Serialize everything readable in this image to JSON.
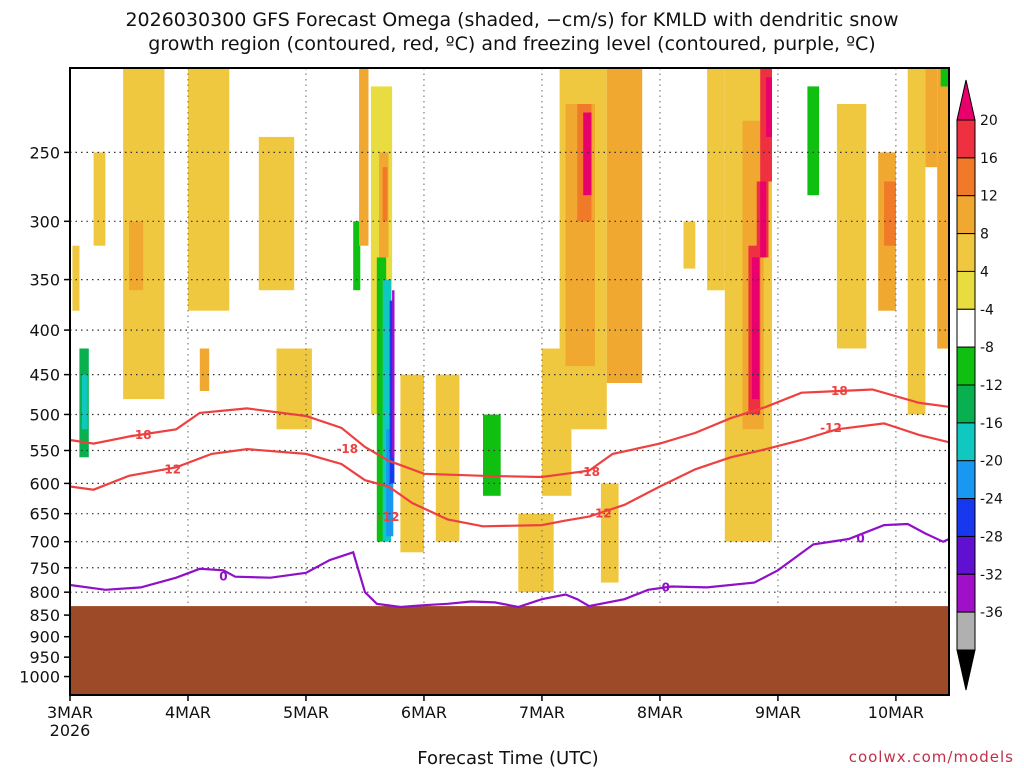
{
  "chart_data": {
    "type": "heatmap",
    "title": {
      "line1": "2026030300 GFS Forecast Omega (shaded, −cm/s) for KMLD with dendritic snow",
      "line2": "growth region (contoured, red, ºC) and freezing level (contoured, purple, ºC)"
    },
    "xlabel": "Forecast Time (UTC)",
    "credit": "coolwx.com/models",
    "x_ticks": [
      "3MAR",
      "4MAR",
      "5MAR",
      "6MAR",
      "7MAR",
      "8MAR",
      "9MAR",
      "10MAR"
    ],
    "x_tick_year": "2026",
    "x_range_days": [
      0,
      7.45
    ],
    "y_ticks": [
      250,
      300,
      350,
      400,
      450,
      500,
      550,
      600,
      650,
      700,
      750,
      800,
      850,
      900,
      950,
      1000
    ],
    "y_range_hpa": [
      200,
      1050
    ],
    "y_scale": "log-pressure",
    "grid": true,
    "ground_level_hpa": 830,
    "colorbar": {
      "labels": [
        20,
        16,
        12,
        8,
        4,
        -4,
        -8,
        -12,
        -16,
        -20,
        -24,
        -28,
        -32,
        -36
      ],
      "colors": [
        "#e8006c",
        "#ee3040",
        "#f07a28",
        "#f0a830",
        "#f0c840",
        "#e8dc40",
        "#ffffff",
        "#10c010",
        "#08b050",
        "#10c8c0",
        "#1898f0",
        "#1838f0",
        "#6010d0",
        "#a010c8",
        "#b0b0b0",
        "#000000"
      ]
    },
    "series": [
      {
        "name": "-18",
        "color": "#ee4040",
        "points": [
          [
            0,
            535
          ],
          [
            0.2,
            540
          ],
          [
            0.5,
            530
          ],
          [
            0.9,
            520
          ],
          [
            1.1,
            498
          ],
          [
            1.5,
            492
          ],
          [
            2.0,
            502
          ],
          [
            2.3,
            518
          ],
          [
            2.5,
            545
          ],
          [
            2.7,
            565
          ],
          [
            3.0,
            585
          ],
          [
            3.5,
            588
          ],
          [
            4.0,
            590
          ],
          [
            4.2,
            585
          ],
          [
            4.4,
            580
          ],
          [
            4.6,
            555
          ],
          [
            5.0,
            540
          ],
          [
            5.3,
            525
          ],
          [
            5.6,
            505
          ],
          [
            5.9,
            490
          ],
          [
            6.2,
            472
          ],
          [
            6.5,
            470
          ],
          [
            6.8,
            468
          ],
          [
            7.2,
            485
          ],
          [
            7.45,
            490
          ]
        ]
      },
      {
        "name": "-12",
        "color": "#ee4040",
        "points": [
          [
            0,
            605
          ],
          [
            0.2,
            610
          ],
          [
            0.5,
            588
          ],
          [
            0.9,
            575
          ],
          [
            1.2,
            555
          ],
          [
            1.5,
            548
          ],
          [
            2.0,
            555
          ],
          [
            2.3,
            570
          ],
          [
            2.5,
            595
          ],
          [
            2.7,
            605
          ],
          [
            2.9,
            632
          ],
          [
            3.2,
            660
          ],
          [
            3.5,
            672
          ],
          [
            4.0,
            670
          ],
          [
            4.2,
            662
          ],
          [
            4.4,
            655
          ],
          [
            4.7,
            635
          ],
          [
            5.0,
            605
          ],
          [
            5.3,
            578
          ],
          [
            5.6,
            560
          ],
          [
            5.9,
            548
          ],
          [
            6.2,
            535
          ],
          [
            6.5,
            520
          ],
          [
            6.9,
            512
          ],
          [
            7.2,
            528
          ],
          [
            7.45,
            538
          ]
        ]
      },
      {
        "name": "0",
        "color": "#9010c8",
        "points": [
          [
            0,
            785
          ],
          [
            0.3,
            795
          ],
          [
            0.6,
            790
          ],
          [
            0.9,
            770
          ],
          [
            1.1,
            752
          ],
          [
            1.3,
            755
          ],
          [
            1.4,
            768
          ],
          [
            1.7,
            770
          ],
          [
            2.0,
            760
          ],
          [
            2.2,
            735
          ],
          [
            2.4,
            720
          ],
          [
            2.5,
            800
          ],
          [
            2.6,
            825
          ],
          [
            2.8,
            832
          ],
          [
            3.0,
            828
          ],
          [
            3.2,
            825
          ],
          [
            3.4,
            820
          ],
          [
            3.6,
            822
          ],
          [
            3.8,
            832
          ],
          [
            4.0,
            815
          ],
          [
            4.2,
            805
          ],
          [
            4.3,
            815
          ],
          [
            4.4,
            830
          ],
          [
            4.7,
            815
          ],
          [
            4.9,
            795
          ],
          [
            5.1,
            788
          ],
          [
            5.4,
            790
          ],
          [
            5.8,
            780
          ],
          [
            6.0,
            755
          ],
          [
            6.3,
            705
          ],
          [
            6.6,
            695
          ],
          [
            6.9,
            670
          ],
          [
            7.1,
            668
          ],
          [
            7.25,
            685
          ],
          [
            7.4,
            700
          ],
          [
            7.45,
            695
          ]
        ]
      }
    ],
    "contour_labels": [
      {
        "text": "-18",
        "color": "#ee4040"
      },
      {
        "text": "-18",
        "color": "#ee4040"
      },
      {
        "text": "-18",
        "color": "#ee4040"
      },
      {
        "text": "-18",
        "color": "#ee4040"
      },
      {
        "text": "-12",
        "color": "#ee4040"
      },
      {
        "text": "-12",
        "color": "#ee4040"
      },
      {
        "text": "-12",
        "color": "#ee4040"
      },
      {
        "text": "-12",
        "color": "#ee4040"
      },
      {
        "text": "0",
        "color": "#9010c8"
      },
      {
        "text": "0",
        "color": "#9010c8"
      },
      {
        "text": "0",
        "color": "#9010c8"
      }
    ],
    "cells": [
      {
        "t": 0.02,
        "dt": 0.12,
        "p1": 380,
        "p2": 640,
        "v": -8
      },
      {
        "t": 0.08,
        "dt": 0.08,
        "p1": 420,
        "p2": 560,
        "v": -14
      },
      {
        "t": 0.1,
        "dt": 0.05,
        "p1": 450,
        "p2": 520,
        "v": -18
      },
      {
        "t": 0.02,
        "dt": 0.06,
        "p1": 320,
        "p2": 380,
        "v": 6
      },
      {
        "t": 0.2,
        "dt": 0.1,
        "p1": 250,
        "p2": 320,
        "v": 6
      },
      {
        "t": 0.45,
        "dt": 0.35,
        "p1": 180,
        "p2": 480,
        "v": 6
      },
      {
        "t": 0.5,
        "dt": 0.12,
        "p1": 300,
        "p2": 360,
        "v": 10
      },
      {
        "t": 1.0,
        "dt": 0.35,
        "p1": 200,
        "p2": 380,
        "v": 6
      },
      {
        "t": 1.1,
        "dt": 0.08,
        "p1": 420,
        "p2": 470,
        "v": 10
      },
      {
        "t": 1.3,
        "dt": 0.15,
        "p1": 700,
        "p2": 800,
        "v": -8
      },
      {
        "t": 1.6,
        "dt": 0.3,
        "p1": 240,
        "p2": 360,
        "v": 6
      },
      {
        "t": 1.75,
        "dt": 0.3,
        "p1": 420,
        "p2": 520,
        "v": 6
      },
      {
        "t": 2.1,
        "dt": 0.15,
        "p1": 180,
        "p2": 360,
        "v": -8
      },
      {
        "t": 2.05,
        "dt": 0.2,
        "p1": 740,
        "p2": 830,
        "v": -8
      },
      {
        "t": 2.3,
        "dt": 0.2,
        "p1": 180,
        "p2": 560,
        "v": -8
      },
      {
        "t": 2.4,
        "dt": 0.06,
        "p1": 300,
        "p2": 360,
        "v": -12
      },
      {
        "t": 2.5,
        "dt": 0.2,
        "p1": 200,
        "p2": 560,
        "v": -8
      },
      {
        "t": 2.38,
        "dt": 0.1,
        "p1": 540,
        "p2": 820,
        "v": -8
      },
      {
        "t": 2.45,
        "dt": 0.08,
        "p1": 200,
        "p2": 320,
        "v": 8
      },
      {
        "t": 2.55,
        "dt": 0.18,
        "p1": 210,
        "p2": 500,
        "v": 0
      },
      {
        "t": 2.6,
        "dt": 0.08,
        "p1": 330,
        "p2": 700,
        "v": -12
      },
      {
        "t": 2.65,
        "dt": 0.07,
        "p1": 350,
        "p2": 700,
        "v": -18
      },
      {
        "t": 2.68,
        "dt": 0.06,
        "p1": 520,
        "p2": 690,
        "v": -22
      },
      {
        "t": 2.71,
        "dt": 0.04,
        "p1": 370,
        "p2": 600,
        "v": -26
      },
      {
        "t": 2.73,
        "dt": 0.02,
        "p1": 360,
        "p2": 560,
        "v": -36
      },
      {
        "t": 2.62,
        "dt": 0.08,
        "p1": 250,
        "p2": 330,
        "v": 10
      },
      {
        "t": 2.65,
        "dt": 0.04,
        "p1": 260,
        "p2": 300,
        "v": 14
      },
      {
        "t": 2.8,
        "dt": 0.2,
        "p1": 450,
        "p2": 720,
        "v": 6
      },
      {
        "t": 2.85,
        "dt": 0.15,
        "p1": 300,
        "p2": 440,
        "v": -8
      },
      {
        "t": 3.05,
        "dt": 0.1,
        "p1": 600,
        "p2": 800,
        "v": -8
      },
      {
        "t": 3.1,
        "dt": 0.2,
        "p1": 450,
        "p2": 700,
        "v": 6
      },
      {
        "t": 3.5,
        "dt": 0.15,
        "p1": 500,
        "p2": 620,
        "v": -10
      },
      {
        "t": 3.8,
        "dt": 0.3,
        "p1": 650,
        "p2": 800,
        "v": 6
      },
      {
        "t": 4.0,
        "dt": 0.25,
        "p1": 420,
        "p2": 620,
        "v": 6
      },
      {
        "t": 4.15,
        "dt": 0.4,
        "p1": 180,
        "p2": 520,
        "v": 6
      },
      {
        "t": 4.2,
        "dt": 0.25,
        "p1": 220,
        "p2": 440,
        "v": 10
      },
      {
        "t": 4.3,
        "dt": 0.12,
        "p1": 220,
        "p2": 300,
        "v": 14
      },
      {
        "t": 4.35,
        "dt": 0.07,
        "p1": 225,
        "p2": 280,
        "v": 20
      },
      {
        "t": 4.55,
        "dt": 0.3,
        "p1": 180,
        "p2": 460,
        "v": 10
      },
      {
        "t": 4.5,
        "dt": 0.15,
        "p1": 600,
        "p2": 780,
        "v": 6
      },
      {
        "t": 4.95,
        "dt": 0.15,
        "p1": 600,
        "p2": 680,
        "v": -8
      },
      {
        "t": 5.35,
        "dt": 0.08,
        "p1": 200,
        "p2": 260,
        "v": -8
      },
      {
        "t": 5.2,
        "dt": 0.1,
        "p1": 300,
        "p2": 340,
        "v": 6
      },
      {
        "t": 5.4,
        "dt": 0.15,
        "p1": 200,
        "p2": 360,
        "v": 6
      },
      {
        "t": 5.6,
        "dt": 0.12,
        "p1": 560,
        "p2": 720,
        "v": -8
      },
      {
        "t": 5.55,
        "dt": 0.4,
        "p1": 200,
        "p2": 700,
        "v": 6
      },
      {
        "t": 5.7,
        "dt": 0.18,
        "p1": 230,
        "p2": 520,
        "v": 10
      },
      {
        "t": 5.75,
        "dt": 0.1,
        "p1": 320,
        "p2": 500,
        "v": 18
      },
      {
        "t": 5.78,
        "dt": 0.06,
        "p1": 330,
        "p2": 480,
        "v": 22
      },
      {
        "t": 5.82,
        "dt": 0.1,
        "p1": 270,
        "p2": 330,
        "v": 18
      },
      {
        "t": 5.85,
        "dt": 0.05,
        "p1": 270,
        "p2": 330,
        "v": 22
      },
      {
        "t": 5.85,
        "dt": 0.1,
        "p1": 200,
        "p2": 270,
        "v": 16
      },
      {
        "t": 5.9,
        "dt": 0.05,
        "p1": 205,
        "p2": 240,
        "v": 22
      },
      {
        "t": 6.15,
        "dt": 0.15,
        "p1": 180,
        "p2": 340,
        "v": -8
      },
      {
        "t": 6.25,
        "dt": 0.1,
        "p1": 210,
        "p2": 280,
        "v": -12
      },
      {
        "t": 6.35,
        "dt": 0.2,
        "p1": 180,
        "p2": 380,
        "v": -8
      },
      {
        "t": 6.5,
        "dt": 0.25,
        "p1": 220,
        "p2": 420,
        "v": 6
      },
      {
        "t": 6.75,
        "dt": 0.2,
        "p1": 180,
        "p2": 420,
        "v": -8
      },
      {
        "t": 6.85,
        "dt": 0.15,
        "p1": 250,
        "p2": 380,
        "v": 10
      },
      {
        "t": 6.9,
        "dt": 0.1,
        "p1": 270,
        "p2": 320,
        "v": 14
      },
      {
        "t": 7.0,
        "dt": 0.15,
        "p1": 450,
        "p2": 620,
        "v": -8
      },
      {
        "t": 7.1,
        "dt": 0.15,
        "p1": 200,
        "p2": 500,
        "v": 6
      },
      {
        "t": 7.25,
        "dt": 0.1,
        "p1": 180,
        "p2": 260,
        "v": 10
      },
      {
        "t": 7.35,
        "dt": 0.1,
        "p1": 180,
        "p2": 420,
        "v": 10
      },
      {
        "t": 7.38,
        "dt": 0.07,
        "p1": 180,
        "p2": 210,
        "v": -12
      }
    ]
  }
}
